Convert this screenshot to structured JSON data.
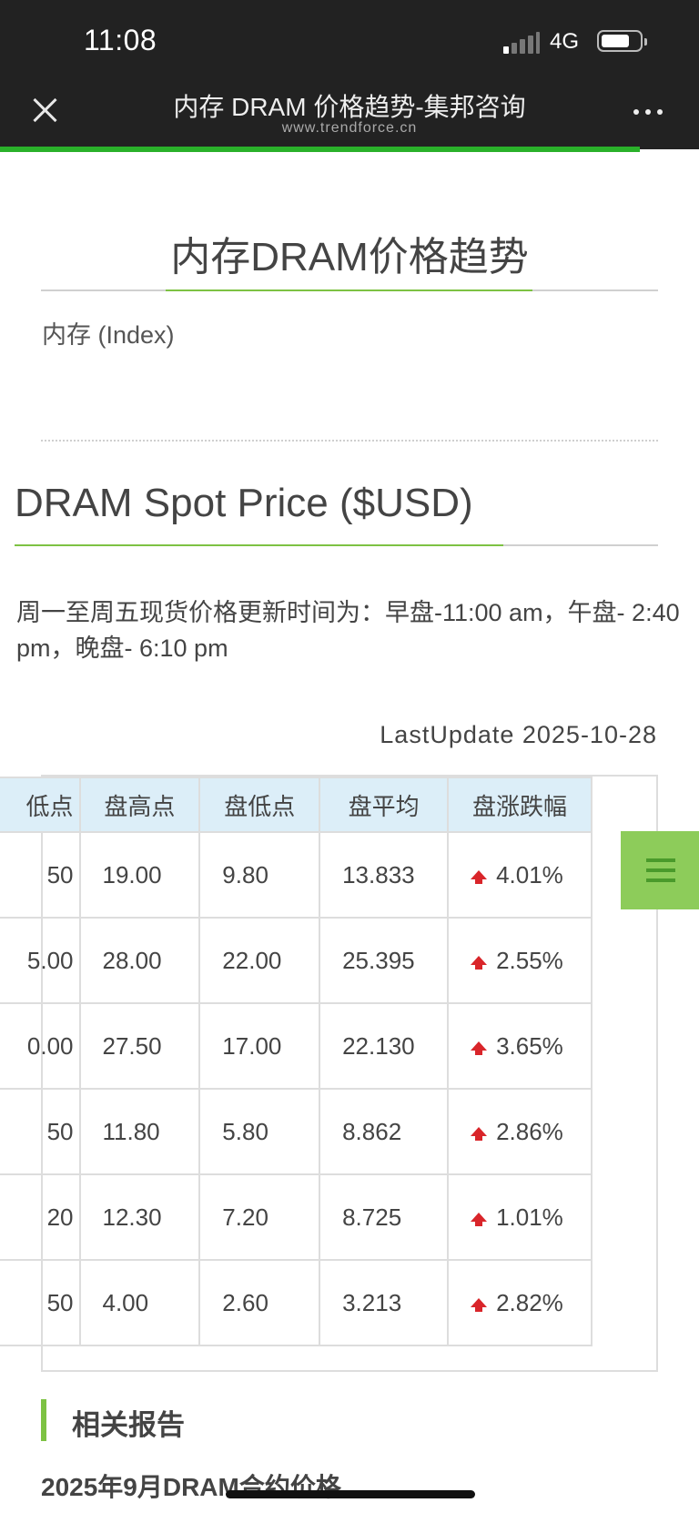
{
  "status_bar": {
    "time": "11:08",
    "network": "4G"
  },
  "browser": {
    "title": "内存 DRAM 价格趋势-集邦咨询",
    "domain": "www.trendforce.cn",
    "load_progress": 0.915
  },
  "page": {
    "heading": "内存DRAM价格趋势",
    "index_label": "内存 (Index)",
    "spot_heading": "DRAM Spot Price ($USD)",
    "schedule_text": "周一至周五现货价格更新时间为：早盘-11:00 am，午盘- 2:40 pm，晚盘- 6:10 pm",
    "last_update": "LastUpdate 2025-10-28"
  },
  "table": {
    "headers": [
      "低点",
      "盘高点",
      "盘低点",
      "盘平均",
      "盘涨跌幅"
    ],
    "rows": [
      {
        "c0": "50",
        "high": "19.00",
        "low": "9.80",
        "avg": "13.833",
        "change": "4.01%"
      },
      {
        "c0": "5.00",
        "high": "28.00",
        "low": "22.00",
        "avg": "25.395",
        "change": "2.55%"
      },
      {
        "c0": "0.00",
        "high": "27.50",
        "low": "17.00",
        "avg": "22.130",
        "change": "3.65%"
      },
      {
        "c0": "50",
        "high": "11.80",
        "low": "5.80",
        "avg": "8.862",
        "change": "2.86%"
      },
      {
        "c0": "20",
        "high": "12.30",
        "low": "7.20",
        "avg": "8.725",
        "change": "1.01%"
      },
      {
        "c0": "50",
        "high": "4.00",
        "low": "2.60",
        "avg": "3.213",
        "change": "2.82%"
      }
    ],
    "trend_color": "#d9252a"
  },
  "related": {
    "heading": "相关报告",
    "first_report": "2025年9月DRAM合约价格"
  },
  "colors": {
    "accent_green": "#7dc243",
    "header_bg": "#dceef8",
    "topbar": "#222222"
  }
}
